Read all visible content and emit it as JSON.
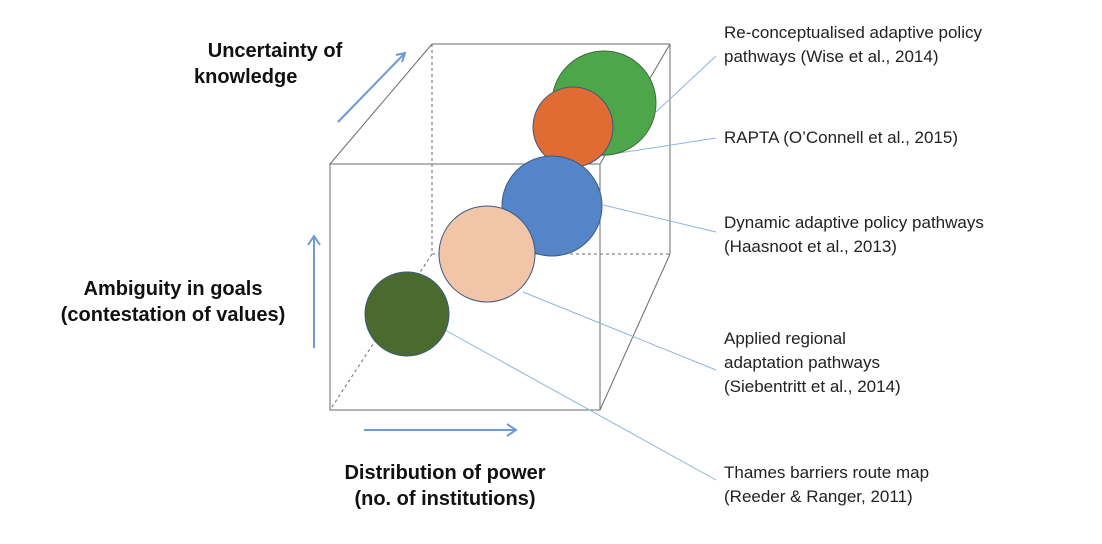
{
  "axes": {
    "uncertainty": {
      "lines": [
        "Uncertainty of",
        "knowledge"
      ]
    },
    "ambiguity": {
      "lines": [
        "Ambiguity in goals",
        "(contestation of values)"
      ]
    },
    "power": {
      "lines": [
        "Distribution of power",
        "(no. of institutions)"
      ]
    }
  },
  "approaches": [
    {
      "id": "reconceptualised",
      "lines": [
        "Re-conceptualised adaptive policy",
        "pathways (Wise et al., 2014)"
      ],
      "color": "#4ea64a"
    },
    {
      "id": "rapta",
      "lines": [
        "RAPTA (O’Connell et al., 2015)"
      ],
      "color": "#e06b33"
    },
    {
      "id": "dapp",
      "lines": [
        "Dynamic adaptive policy pathways",
        "(Haasnoot et al., 2013)"
      ],
      "color": "#5585c8"
    },
    {
      "id": "regional",
      "lines": [
        "Applied regional",
        "adaptation pathways",
        "(Siebentritt et al., 2014)"
      ],
      "color": "#f2c4a8"
    },
    {
      "id": "thames",
      "lines": [
        "Thames barriers route map",
        "(Reeder & Ranger, 2011)"
      ],
      "color": "#4b6a2d"
    }
  ],
  "colors": {
    "arrow": "#6d9ad2",
    "cube": "#6b6b6b",
    "leader": "#8fb3de"
  }
}
